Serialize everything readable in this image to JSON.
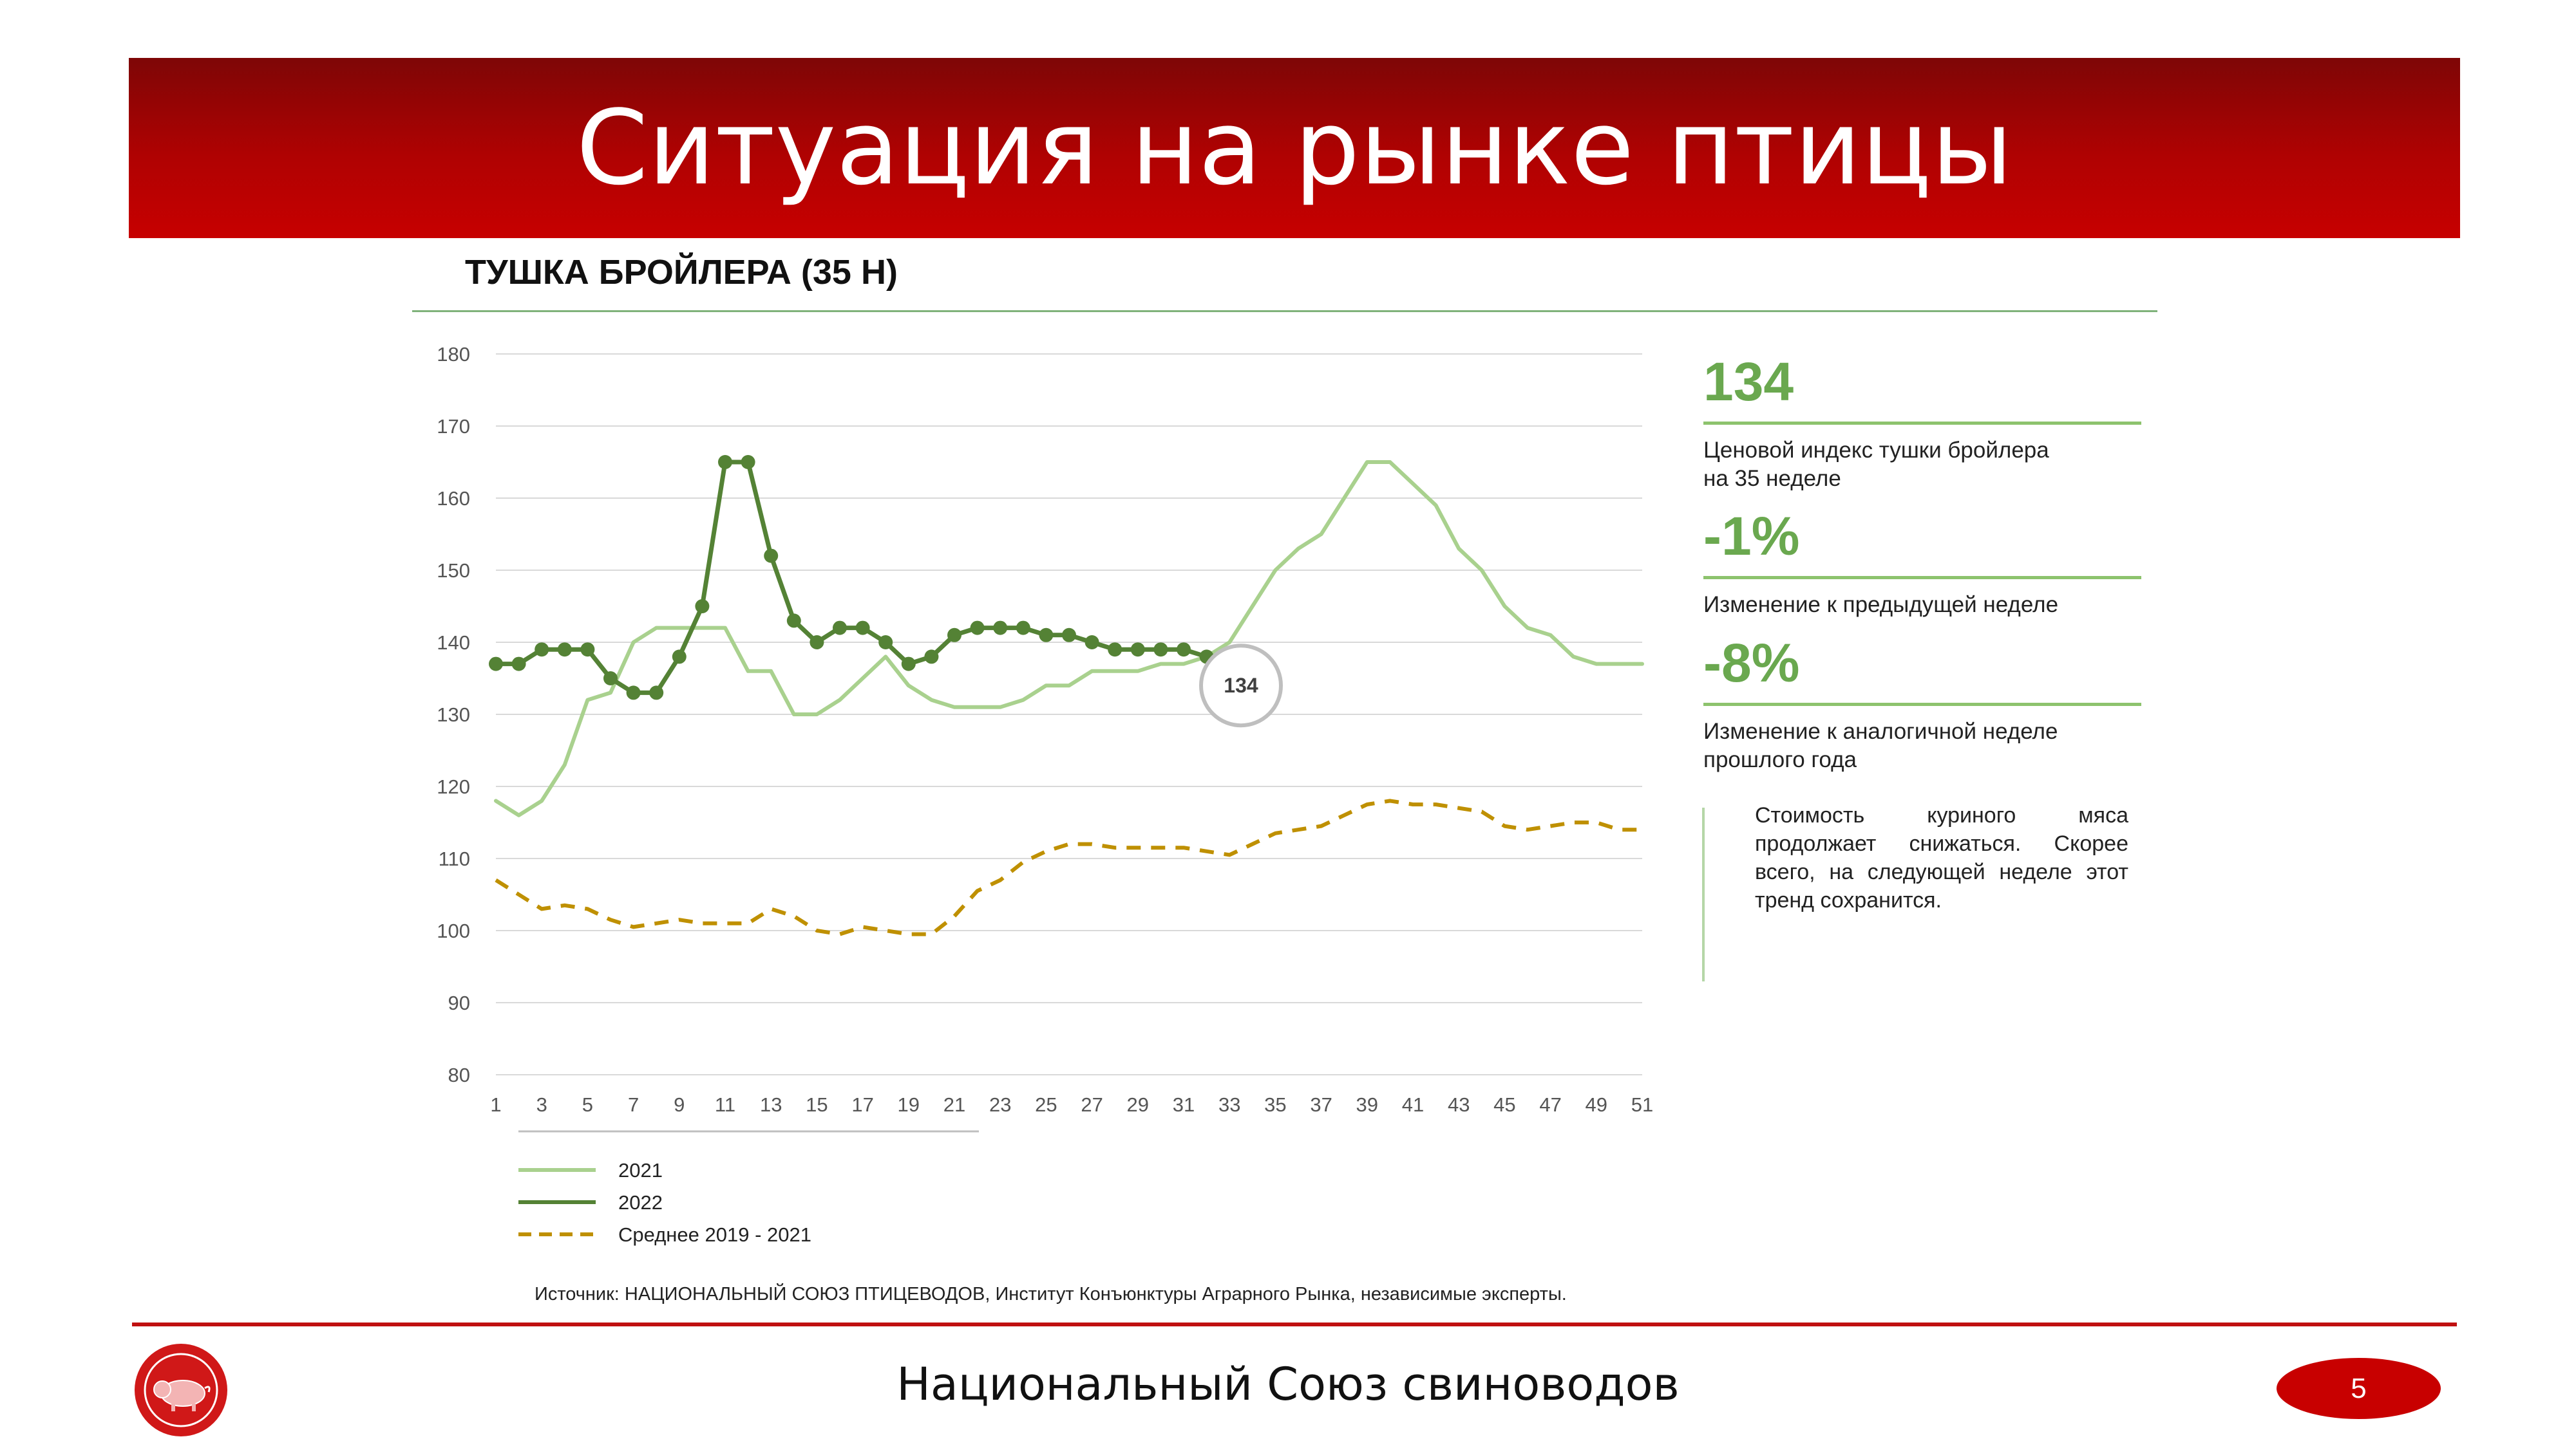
{
  "header": {
    "title": "Ситуация на рынке птицы"
  },
  "subtitle": "ТУШКА БРОЙЛЕРА (35 Н)",
  "kpis": [
    {
      "value": "134",
      "label_line1": "Ценовой индекс тушки бройлера",
      "label_line2": "на 35 неделе"
    },
    {
      "value": "-1%",
      "label_line1": "Изменение к предыдущей неделе",
      "label_line2": ""
    },
    {
      "value": "-8%",
      "label_line1": "Изменение к аналогичной неделе",
      "label_line2": "прошлого года"
    }
  ],
  "comment": "Стоимость куриного мяса продолжает снижаться. Скорее всего, на следующей неделе этот тренд сохранится.",
  "source": "Источник: НАЦИОНАЛЬНЫЙ СОЮЗ ПТИЦЕВОДОВ, Институт Конъюнктуры Аграрного Рынка, независимые эксперты.",
  "footer": {
    "title": "Национальный Союз свиноводов",
    "page_number": "5"
  },
  "colors": {
    "banner": "#c00000",
    "series_2021": "#a9d18e",
    "series_2022": "#548235",
    "series_avg": "#bf9000",
    "kpi": "#6aa84f"
  },
  "icons": {
    "logo": "pig-logo-icon"
  },
  "chart_data": {
    "type": "line",
    "title": "",
    "xlabel": "",
    "ylabel": "",
    "ylim": [
      80,
      180
    ],
    "yticks": [
      "180",
      "170",
      "160",
      "150",
      "140",
      "130",
      "120",
      "110",
      "100",
      "90",
      "80"
    ],
    "xlim": [
      1,
      51
    ],
    "xticks": [
      "1",
      "3",
      "5",
      "7",
      "9",
      "11",
      "13",
      "15",
      "17",
      "19",
      "21",
      "23",
      "25",
      "27",
      "29",
      "31",
      "33",
      "35",
      "37",
      "39",
      "41",
      "43",
      "45",
      "47",
      "49",
      "51"
    ],
    "grid": true,
    "legend": "bottom-left",
    "callout": {
      "label": "134",
      "x": 33,
      "y": 134
    },
    "series": [
      {
        "name": "2021",
        "style": "solid",
        "x": [
          1,
          2,
          3,
          4,
          5,
          6,
          7,
          8,
          9,
          10,
          11,
          12,
          13,
          14,
          15,
          16,
          17,
          18,
          19,
          20,
          21,
          22,
          23,
          24,
          25,
          26,
          27,
          28,
          29,
          30,
          31,
          32,
          33,
          34,
          35,
          36,
          37,
          38,
          39,
          40,
          41,
          42,
          43,
          44,
          45,
          46,
          47,
          48,
          49,
          50,
          51
        ],
        "values": [
          118,
          116,
          118,
          123,
          132,
          133,
          140,
          142,
          142,
          142,
          142,
          136,
          136,
          130,
          130,
          132,
          135,
          138,
          134,
          132,
          131,
          131,
          131,
          132,
          134,
          134,
          136,
          136,
          136,
          137,
          137,
          138,
          140,
          145,
          150,
          153,
          155,
          160,
          165,
          165,
          162,
          159,
          153,
          150,
          145,
          142,
          141,
          138,
          137,
          137,
          137
        ]
      },
      {
        "name": "2022",
        "style": "solid-markers",
        "x": [
          1,
          2,
          3,
          4,
          5,
          6,
          7,
          8,
          9,
          10,
          11,
          12,
          13,
          14,
          15,
          16,
          17,
          18,
          19,
          20,
          21,
          22,
          23,
          24,
          25,
          26,
          27,
          28,
          29,
          30,
          31,
          32
        ],
        "values": [
          137,
          137,
          139,
          139,
          139,
          135,
          133,
          133,
          138,
          145,
          165,
          165,
          152,
          143,
          140,
          142,
          142,
          140,
          137,
          138,
          141,
          142,
          142,
          142,
          141,
          141,
          140,
          139,
          139,
          139,
          139,
          138
        ]
      },
      {
        "name": "Среднее 2019 - 2021",
        "style": "dashed",
        "x": [
          1,
          2,
          3,
          4,
          5,
          6,
          7,
          8,
          9,
          10,
          11,
          12,
          13,
          14,
          15,
          16,
          17,
          18,
          19,
          20,
          21,
          22,
          23,
          24,
          25,
          26,
          27,
          28,
          29,
          30,
          31,
          32,
          33,
          34,
          35,
          36,
          37,
          38,
          39,
          40,
          41,
          42,
          43,
          44,
          45,
          46,
          47,
          48,
          49,
          50,
          51
        ],
        "values": [
          107,
          105,
          103,
          103.5,
          103,
          101.5,
          100.5,
          101,
          101.5,
          101,
          101,
          101,
          103,
          102,
          100,
          99.5,
          100.5,
          100,
          99.5,
          99.5,
          102,
          105.5,
          107,
          109.5,
          111,
          112,
          112,
          111.5,
          111.5,
          111.5,
          111.5,
          111,
          110.5,
          112,
          113.5,
          114,
          114.5,
          116,
          117.5,
          118,
          117.5,
          117.5,
          117,
          116.5,
          114.5,
          114,
          114.5,
          115,
          115,
          114,
          114
        ]
      }
    ]
  }
}
